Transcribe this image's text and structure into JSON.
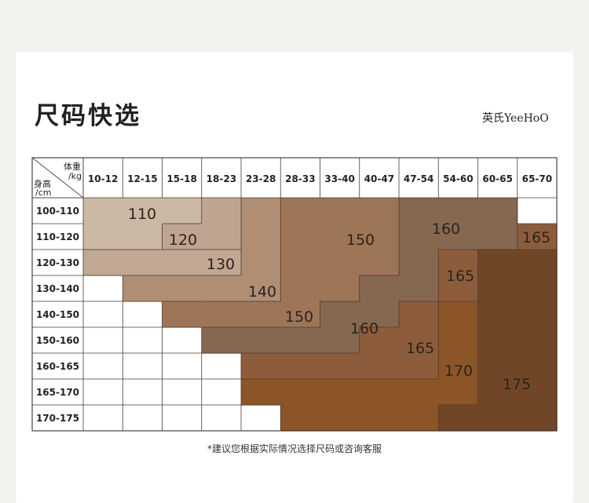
{
  "title": "尺码快选",
  "brand": "英氏YeeHoO",
  "corner": {
    "weight_label": "体重",
    "weight_unit": "/kg",
    "height_label": "身高",
    "height_unit": "/cm"
  },
  "weights": [
    "10-12",
    "12-15",
    "15-18",
    "18-23",
    "23-28",
    "28-33",
    "33-40",
    "40-47",
    "47-54",
    "54-60",
    "60-65",
    "65-70"
  ],
  "heights": [
    "100-110",
    "110-120",
    "120-130",
    "130-140",
    "140-150",
    "150-160",
    "160-165",
    "165-170",
    "170-175"
  ],
  "size_colors": {
    "110": "#cbb8a5",
    "120": "#bfa591",
    "130": "#c1a893",
    "140": "#af8e74",
    "150": "#9f7558",
    "160": "#866750",
    "165": "#8d5c3a",
    "170": "#8b5528",
    "175": "#714626"
  },
  "size_grid": [
    [
      "110",
      "110",
      "110",
      "120",
      "140",
      "150",
      "150",
      "150",
      "160",
      "160",
      "160",
      ""
    ],
    [
      "110",
      "110",
      "120",
      "120",
      "140",
      "150",
      "150",
      "150",
      "160",
      "160",
      "160",
      "165"
    ],
    [
      "130",
      "130",
      "130",
      "130",
      "140",
      "150",
      "150",
      "150",
      "160",
      "165",
      "175",
      "175"
    ],
    [
      "",
      "140",
      "140",
      "140",
      "140",
      "150",
      "150",
      "160",
      "160",
      "165",
      "175",
      "175"
    ],
    [
      "",
      "",
      "150",
      "150",
      "150",
      "150",
      "160",
      "160",
      "165",
      "170",
      "175",
      "175"
    ],
    [
      "",
      "",
      "",
      "160",
      "160",
      "160",
      "160",
      "165",
      "165",
      "170",
      "175",
      "175"
    ],
    [
      "",
      "",
      "",
      "",
      "165",
      "165",
      "165",
      "165",
      "165",
      "170",
      "175",
      "175"
    ],
    [
      "",
      "",
      "",
      "",
      "170",
      "170",
      "170",
      "170",
      "170",
      "170",
      "175",
      "175"
    ],
    [
      "",
      "",
      "",
      "",
      "",
      "170",
      "170",
      "170",
      "170",
      "175",
      "175",
      "175"
    ]
  ],
  "size_labels": [
    {
      "text": "110"
    },
    {
      "text": "120"
    },
    {
      "text": "130"
    },
    {
      "text": "140"
    },
    {
      "text": "150"
    },
    {
      "text": "150"
    },
    {
      "text": "160"
    },
    {
      "text": "160"
    },
    {
      "text": "165"
    },
    {
      "text": "165"
    },
    {
      "text": "165"
    },
    {
      "text": "170"
    },
    {
      "text": "175"
    }
  ],
  "footnote": "*建议您根据实际情况选择尺码或咨询客服"
}
